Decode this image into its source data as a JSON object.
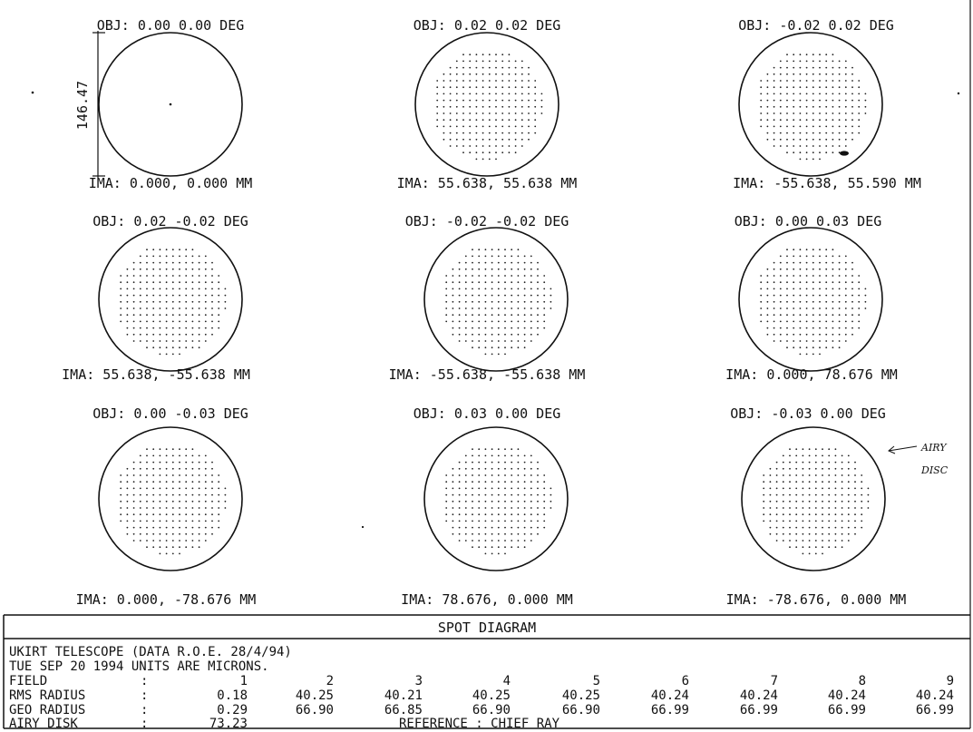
{
  "cells": [
    {
      "obj": "OBJ: 0.00  0.00 DEG",
      "ima": "IMA: 0.000, 0.000 MM",
      "spot": "center"
    },
    {
      "obj": "OBJ: 0.02  0.02 DEG",
      "ima": "IMA: 55.638, 55.638 MM",
      "spot": "grid"
    },
    {
      "obj": "OBJ: -0.02  0.02 DEG",
      "ima": "IMA: -55.638, 55.590 MM",
      "spot": "grid"
    },
    {
      "obj": "OBJ: 0.02  -0.02 DEG",
      "ima": "IMA: 55.638, -55.638 MM",
      "spot": "grid"
    },
    {
      "obj": "OBJ: -0.02  -0.02 DEG",
      "ima": "IMA: -55.638, -55.638 MM",
      "spot": "grid"
    },
    {
      "obj": "OBJ: 0.00  0.03 DEG",
      "ima": "IMA: 0.000, 78.676 MM",
      "spot": "grid"
    },
    {
      "obj": "OBJ: 0.00  -0.03 DEG",
      "ima": "IMA: 0.000, -78.676 MM",
      "spot": "grid"
    },
    {
      "obj": "OBJ: 0.03  0.00 DEG",
      "ima": "IMA: 78.676, 0.000 MM",
      "spot": "grid"
    },
    {
      "obj": "OBJ: -0.03  0.00 DEG",
      "ima": "IMA: -78.676, 0.000 MM",
      "spot": "grid"
    }
  ],
  "dimension_label": "146.47",
  "airy_note": [
    "AIRY",
    "DISC"
  ],
  "footer": {
    "title": "SPOT DIAGRAM",
    "line1": "UKIRT TELESCOPE (DATA R.O.E. 28/4/94)",
    "line2": "TUE SEP 20 1994   UNITS ARE MICRONS.",
    "table": {
      "field": {
        "label": "FIELD",
        "values": [
          "1",
          "2",
          "3",
          "4",
          "5",
          "6",
          "7",
          "8",
          "9"
        ]
      },
      "rms": {
        "label": "RMS RADIUS",
        "values": [
          "0.18",
          "40.25",
          "40.21",
          "40.25",
          "40.25",
          "40.24",
          "40.24",
          "40.24",
          "40.24"
        ]
      },
      "geo": {
        "label": "GEO RADIUS",
        "values": [
          "0.29",
          "66.90",
          "66.85",
          "66.90",
          "66.90",
          "66.99",
          "66.99",
          "66.99",
          "66.99"
        ]
      },
      "airy": {
        "label": "AIRY DISK",
        "value": "73.23"
      }
    },
    "reference": "REFERENCE  : CHIEF RAY"
  }
}
